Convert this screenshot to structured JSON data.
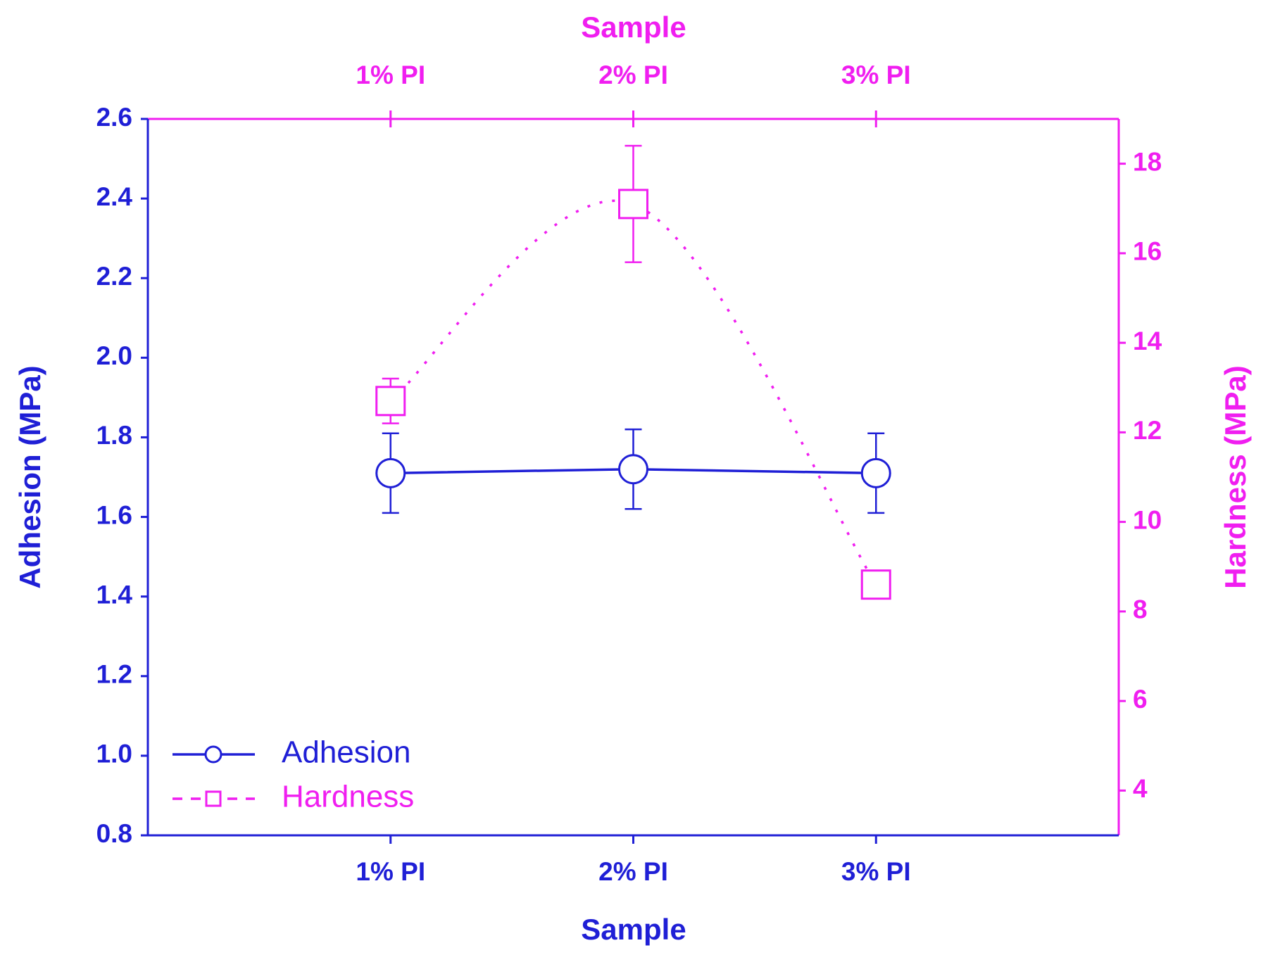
{
  "chart_data": {
    "type": "line",
    "xlabel": "Sample",
    "x2label": "Sample",
    "ylabel": "Adhesion (MPa)",
    "y2label": "Hardness (MPa)",
    "categories": [
      "1% PI",
      "2% PI",
      "3% PI"
    ],
    "ylim": [
      0.8,
      2.6
    ],
    "yticks": [
      0.8,
      {
        "value": 1,
        "label": "1.0"
      },
      1.2,
      1.4,
      1.6,
      1.8,
      {
        "value": 2,
        "label": "2.0"
      },
      2.2,
      2.4,
      2.6
    ],
    "y2lim": [
      3,
      19
    ],
    "y2ticks": [
      4,
      6,
      8,
      10,
      12,
      14,
      16,
      18
    ],
    "legend": "lower left",
    "series": [
      {
        "name": "Adhesion",
        "color": "#1f1fd6",
        "marker": "circle",
        "linestyle": "solid",
        "values": [
          1.71,
          1.72,
          1.71
        ],
        "errors": [
          0.1,
          0.1,
          0.1
        ]
      },
      {
        "name": "Hardness",
        "color": "#f01ef0",
        "axis": "y2",
        "marker": "square",
        "linestyle": "dotted",
        "smooth": true,
        "values": [
          12.7,
          17.1,
          8.6
        ],
        "errors": [
          0.5,
          1.3,
          0.3
        ]
      }
    ]
  }
}
